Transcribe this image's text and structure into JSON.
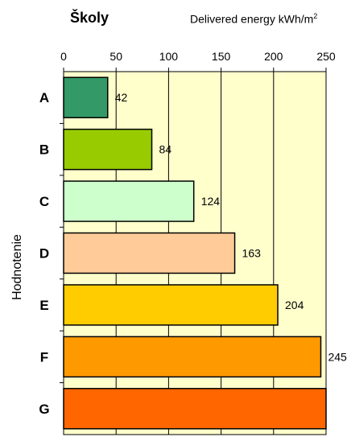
{
  "chart_data": {
    "type": "bar",
    "orientation": "horizontal",
    "title": "Školy",
    "unit_label": "Delivered energy kWh/m",
    "unit_superscript": "2",
    "ylabel": "Hodnotenie",
    "xlim": [
      0,
      250
    ],
    "x_ticks": [
      "0",
      "50",
      "100",
      "150",
      "200",
      "250"
    ],
    "grid": "vertical",
    "categories": [
      "A",
      "B",
      "C",
      "D",
      "E",
      "F",
      "G"
    ],
    "values": [
      42,
      84,
      124,
      163,
      204,
      245,
      250
    ],
    "data_labels": [
      "42",
      "84",
      "124",
      "163",
      "204",
      "245",
      ""
    ],
    "colors": [
      "#339966",
      "#99cc00",
      "#ccffcc",
      "#ffcc99",
      "#ffcc00",
      "#ff9900",
      "#ff6600"
    ],
    "plot_background": "#ffffcc"
  }
}
